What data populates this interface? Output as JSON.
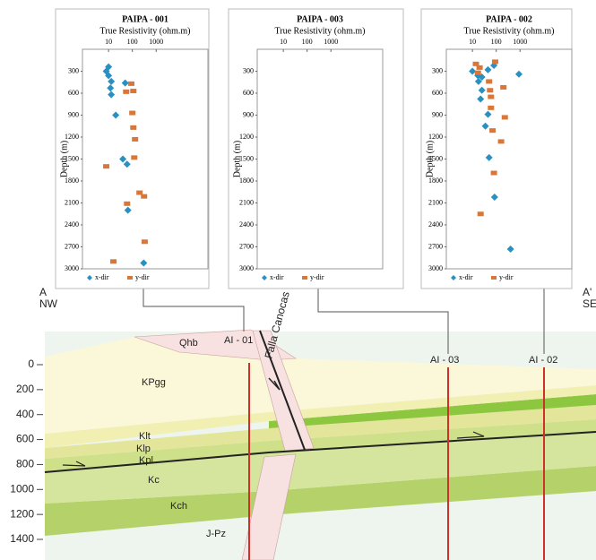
{
  "chart_data": [
    {
      "type": "scatter",
      "title": "PAIPA - 001",
      "x_label": "True Resistivity (ohm.m)",
      "y_label": "Depth (m)",
      "log_x": true,
      "y_inverted": true,
      "xlim": [
        0.8,
        150000
      ],
      "xticks": [
        10,
        100,
        1000
      ],
      "ylim": [
        0,
        3000
      ],
      "yticks": [
        300,
        600,
        900,
        1200,
        1500,
        1800,
        2100,
        2400,
        2700,
        3000
      ],
      "series": [
        {
          "name": "x-dir",
          "color": "#2a8fc1",
          "marker": "diamond",
          "x": [
            10,
            8,
            10,
            13,
            12,
            13,
            50,
            20,
            40,
            60,
            65,
            300
          ],
          "values": [
            240,
            300,
            360,
            440,
            530,
            620,
            460,
            900,
            1500,
            1570,
            2200,
            2920
          ]
        },
        {
          "name": "y-dir",
          "color": "#d9773a",
          "marker": "square",
          "x": [
            110,
            55,
            90,
            100,
            110,
            130,
            120,
            8,
            200,
            310,
            60,
            330,
            16
          ],
          "values": [
            570,
            580,
            470,
            870,
            1070,
            1230,
            1480,
            1600,
            1960,
            2010,
            2110,
            2630,
            2900
          ]
        }
      ]
    },
    {
      "type": "scatter",
      "title": "PAIPA - 003",
      "x_label": "True Resistivity (ohm.m)",
      "y_label": "Depth (m)",
      "log_x": true,
      "y_inverted": true,
      "xlim": [
        0.8,
        150000
      ],
      "xticks": [
        10,
        100,
        1000
      ],
      "ylim": [
        0,
        3000
      ],
      "yticks": [
        300,
        600,
        900,
        1200,
        1500,
        1800,
        2100,
        2400,
        2700,
        3000
      ],
      "series": [
        {
          "name": "x-dir",
          "color": "#2a8fc1",
          "marker": "diamond",
          "x": [],
          "values": []
        },
        {
          "name": "y-dir",
          "color": "#d9773a",
          "marker": "square",
          "x": [],
          "values": []
        }
      ]
    },
    {
      "type": "scatter",
      "title": "PAIPA - 002",
      "x_label": "True Resistivity (ohm.m)",
      "y_label": "Depth (m)",
      "log_x": true,
      "y_inverted": true,
      "xlim": [
        0.8,
        150000
      ],
      "xticks": [
        10,
        100,
        1000
      ],
      "ylim": [
        0,
        3000
      ],
      "yticks": [
        300,
        600,
        900,
        1200,
        1500,
        1800,
        2100,
        2400,
        2700,
        3000
      ],
      "series": [
        {
          "name": "x-dir",
          "color": "#2a8fc1",
          "marker": "diamond",
          "x": [
            80,
            45,
            25,
            18,
            25,
            22,
            45,
            35,
            50,
            85,
            400,
            900,
            17,
            10
          ],
          "values": [
            220,
            280,
            380,
            440,
            560,
            680,
            890,
            1050,
            1480,
            2020,
            2730,
            340,
            360,
            300
          ]
        },
        {
          "name": "y-dir",
          "color": "#d9773a",
          "marker": "square",
          "x": [
            14,
            20,
            90,
            17,
            50,
            55,
            60,
            200,
            60,
            230,
            70,
            160,
            80,
            22
          ],
          "values": [
            200,
            250,
            170,
            320,
            440,
            560,
            650,
            520,
            800,
            930,
            1110,
            1260,
            1690,
            2250
          ]
        }
      ]
    }
  ],
  "cross_section": {
    "left_label": "A",
    "left_direction": "NW",
    "right_label": "A'",
    "right_direction": "SE",
    "fault": "Falla Canocas",
    "wells": [
      "AI - 01",
      "AI - 03",
      "AI - 02"
    ],
    "units": [
      "Qhb",
      "KPgg",
      "Klt",
      "Klp",
      "Kpl",
      "Kc",
      "Kch",
      "J-Pz"
    ],
    "ylim": [
      0,
      1400
    ],
    "yticks": [
      0,
      200,
      400,
      600,
      800,
      1000,
      1200,
      1400
    ]
  }
}
